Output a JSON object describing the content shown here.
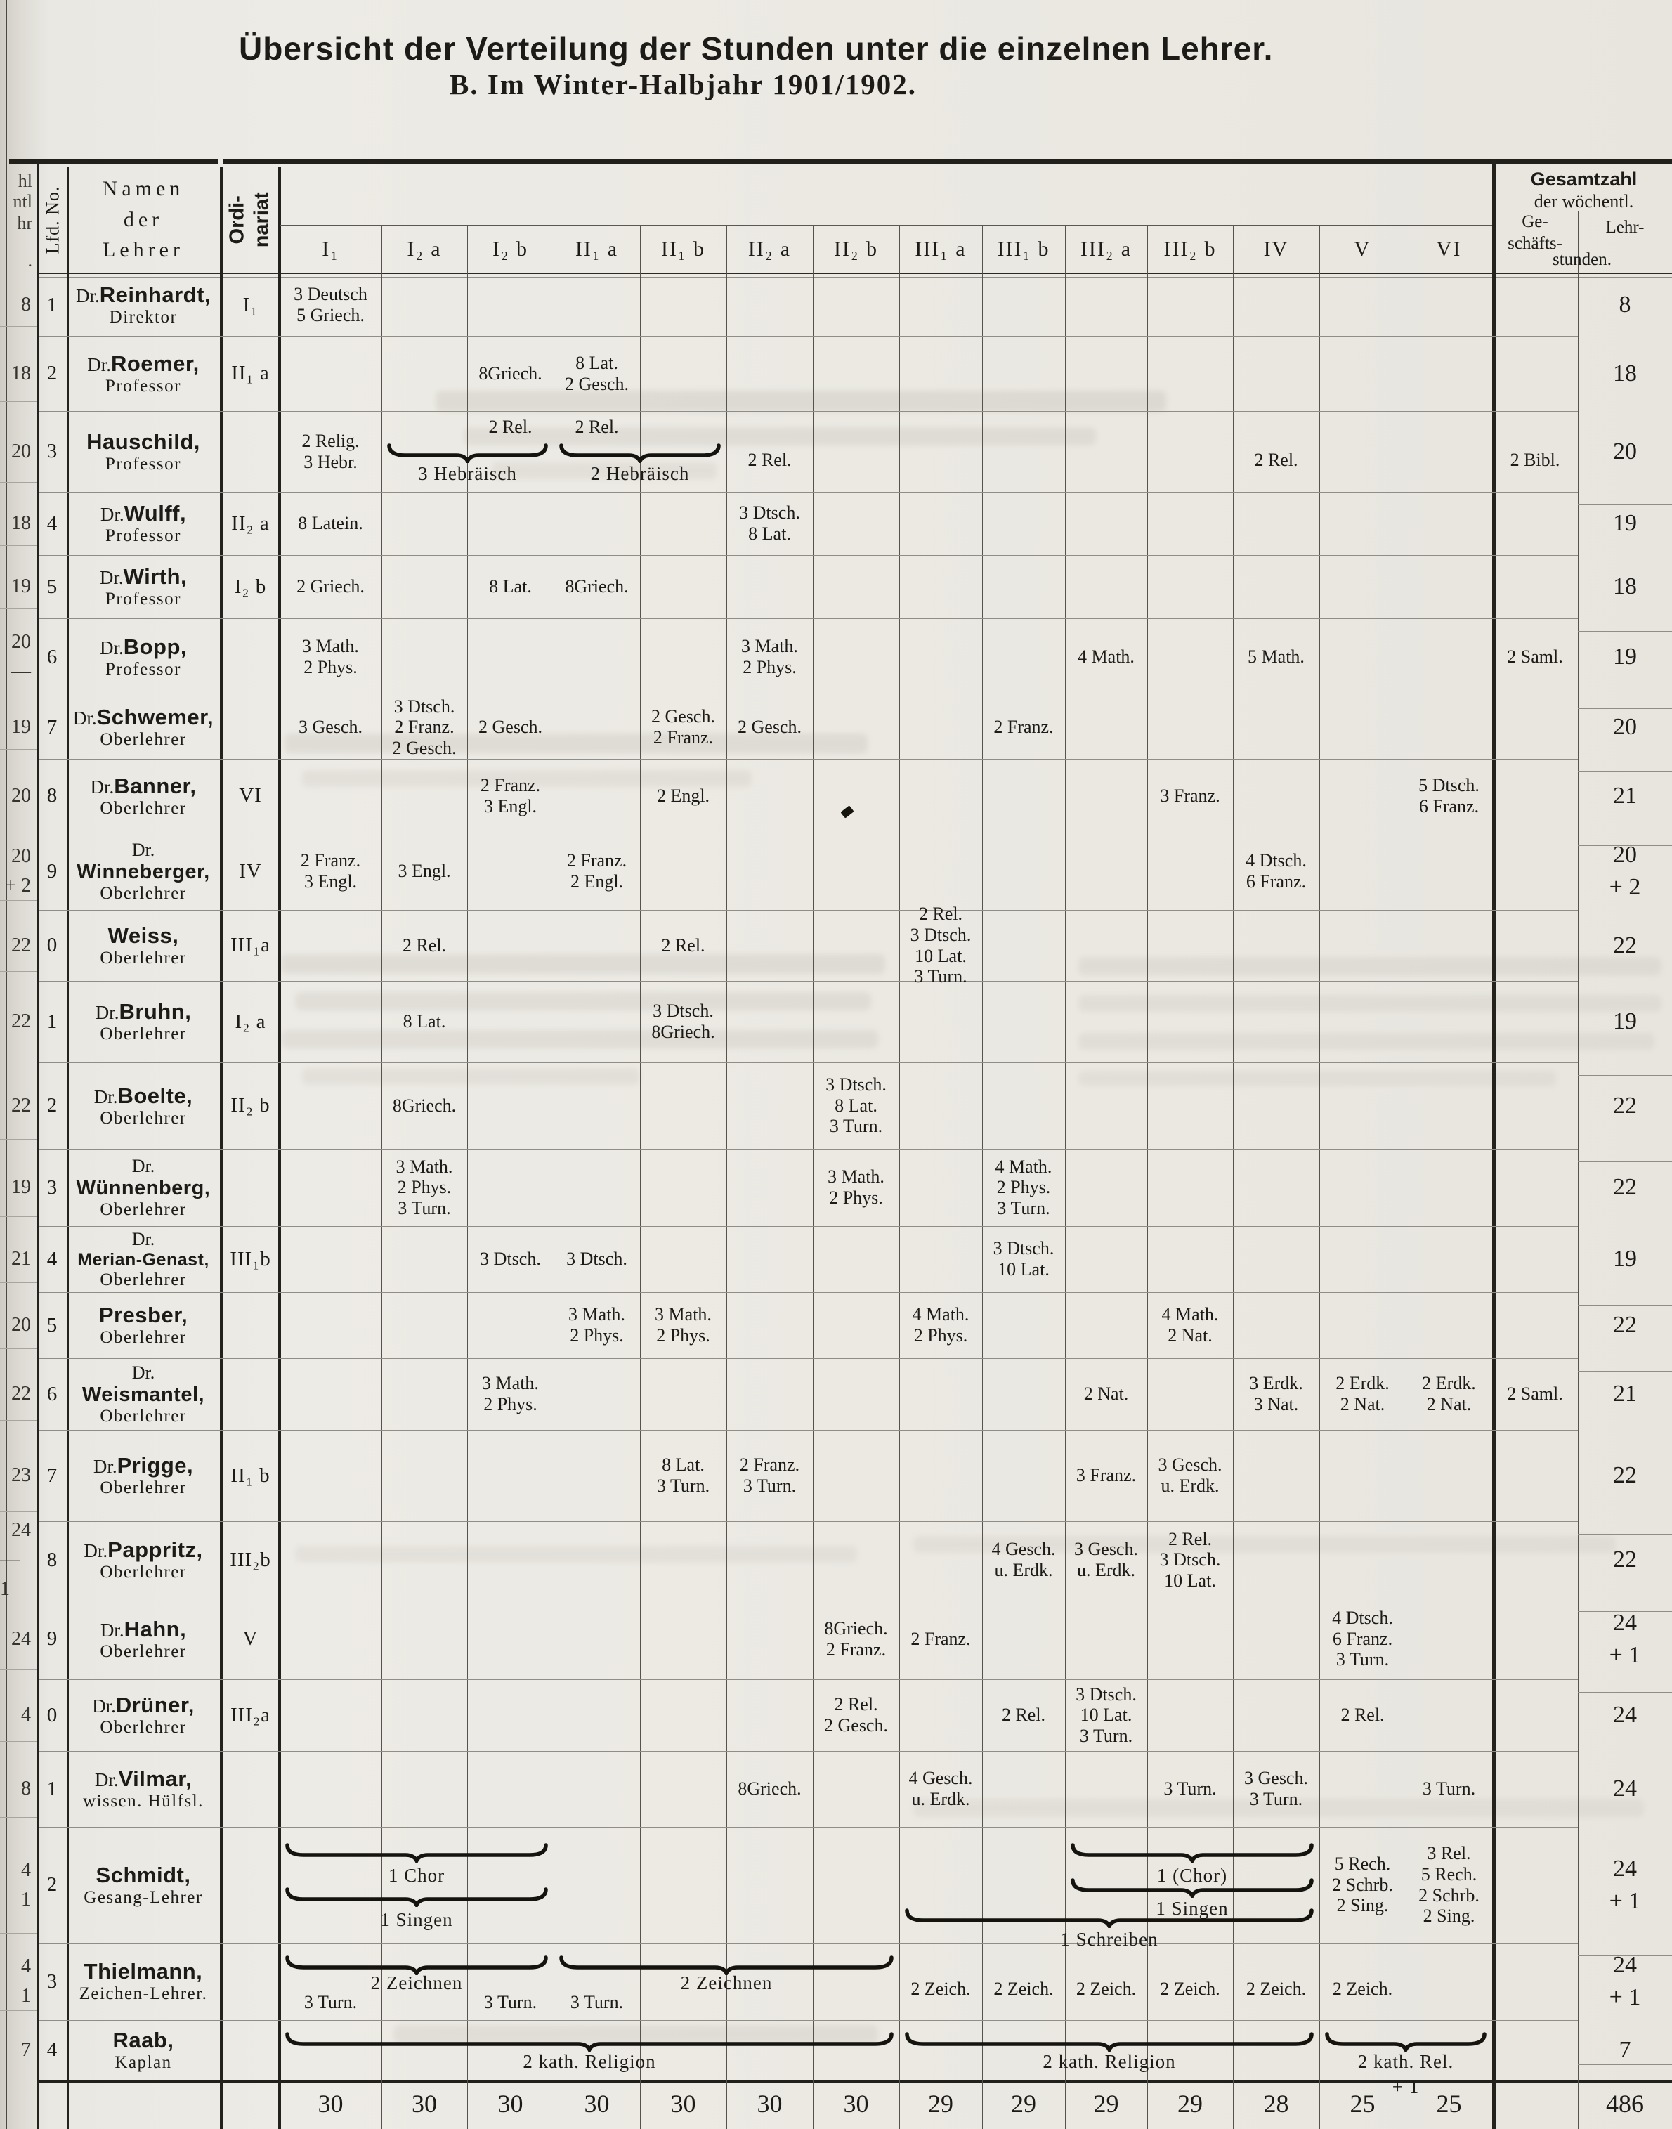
{
  "page": {
    "title": "Übersicht der Verteilung der Stunden unter die einzelnen Lehrer.",
    "subtitle": "B.   Im Winter-Halbjahr 1901/1902."
  },
  "strip": {
    "fragments": [
      "hl",
      "ntl",
      "hr",
      "."
    ]
  },
  "header": {
    "lfd": "Lfd. No.",
    "name": [
      "Namen",
      "der",
      "Lehrer"
    ],
    "ord": [
      "Ordi-",
      "nariat"
    ],
    "classes": [
      "I₁",
      "I₂ a",
      "I₂ b",
      "II₁ a",
      "II₁ b",
      "II₂ a",
      "II₂ b",
      "III₁ a",
      "III₁ b",
      "III₂ a",
      "III₂ b",
      "IV",
      "V",
      "VI"
    ],
    "total": {
      "line1": "Gesamtzahl",
      "line2": "der wöchentl.",
      "sub_left": [
        "Ge-",
        "schäfts-"
      ],
      "sub_right": "Lehr-",
      "sub_bottom": "stunden."
    }
  },
  "teachers": [
    {
      "no": "1",
      "strip": [
        "8"
      ],
      "name": {
        "dr": "Dr.",
        "sur": "Reinhardt,",
        "sub": "Direktor"
      },
      "ord": "I₁",
      "cells": [
        {
          "col": "I1",
          "lines": [
            "3 Deutsch",
            "5 Griech."
          ]
        }
      ],
      "braces": [],
      "lehr": [
        "8"
      ]
    },
    {
      "no": "2",
      "strip": [
        "18"
      ],
      "name": {
        "dr": "Dr.",
        "sur": "Roemer,",
        "sub": "Professor"
      },
      "ord": "II₁ a",
      "cells": [
        {
          "col": "I2b",
          "lines": [
            "8Griech."
          ]
        },
        {
          "col": "II1a",
          "lines": [
            "8 Lat.",
            "2 Gesch."
          ]
        }
      ],
      "braces": [],
      "lehr": [
        "18"
      ]
    },
    {
      "no": "3",
      "strip": [
        "20"
      ],
      "name": {
        "sur": "Hauschild,",
        "sub": "Professor"
      },
      "ord": "",
      "cells": [
        {
          "col": "I1",
          "lines": [
            "2 Relig.",
            "3 Hebr."
          ]
        },
        {
          "col": "I2b",
          "lines": [
            "2 Rel."
          ],
          "va": "top"
        },
        {
          "col": "II1a",
          "lines": [
            "2 Rel."
          ],
          "va": "top"
        },
        {
          "col": "II2a",
          "lines": [
            "2 Rel."
          ],
          "va": "low"
        },
        {
          "col": "IV",
          "lines": [
            "2 Rel."
          ],
          "va": "low"
        },
        {
          "col": "gesch",
          "lines": [
            "2 Bibl."
          ],
          "va": "low"
        }
      ],
      "braces": [
        {
          "from": "I2a",
          "to": "I2b",
          "label": "3 Hebräisch",
          "yb": 0.4,
          "yl": 0.64
        },
        {
          "from": "II1a",
          "to": "II1b",
          "label": "2 Hebräisch",
          "yb": 0.4,
          "yl": 0.64
        }
      ],
      "lehr": [
        "20"
      ]
    },
    {
      "no": "4",
      "strip": [
        "18"
      ],
      "name": {
        "dr": "Dr.",
        "sur": "Wulff,",
        "sub": "Professor"
      },
      "ord": "II₂ a",
      "cells": [
        {
          "col": "I1",
          "lines": [
            "8 Latein."
          ]
        },
        {
          "col": "II2a",
          "lines": [
            "3 Dtsch.",
            "8 Lat."
          ]
        }
      ],
      "braces": [],
      "lehr": [
        "19"
      ]
    },
    {
      "no": "5",
      "strip": [
        "19"
      ],
      "name": {
        "dr": "Dr.",
        "sur": "Wirth,",
        "sub": "Professor"
      },
      "ord": "I₂ b",
      "cells": [
        {
          "col": "I1",
          "lines": [
            "2 Griech."
          ]
        },
        {
          "col": "I2b",
          "lines": [
            "8 Lat."
          ]
        },
        {
          "col": "II1a",
          "lines": [
            "8Griech."
          ]
        }
      ],
      "braces": [],
      "lehr": [
        "18"
      ]
    },
    {
      "no": "6",
      "strip": [
        "20",
        "—"
      ],
      "name": {
        "dr": "Dr.",
        "sur": "Bopp,",
        "sub": "Professor"
      },
      "ord": "",
      "cells": [
        {
          "col": "I1",
          "lines": [
            "3 Math.",
            "2 Phys."
          ]
        },
        {
          "col": "II2a",
          "lines": [
            "3 Math.",
            "2 Phys."
          ]
        },
        {
          "col": "III2a",
          "lines": [
            "4 Math."
          ]
        },
        {
          "col": "IV",
          "lines": [
            "5 Math."
          ]
        },
        {
          "col": "gesch",
          "lines": [
            "2 Saml."
          ]
        }
      ],
      "braces": [],
      "lehr": [
        "19"
      ]
    },
    {
      "no": "7",
      "strip": [
        "19"
      ],
      "name": {
        "dr": "Dr.",
        "sur": "Schwemer,",
        "sub": "Oberlehrer"
      },
      "ord": "",
      "cells": [
        {
          "col": "I1",
          "lines": [
            "3 Gesch."
          ]
        },
        {
          "col": "I2a",
          "lines": [
            "3 Dtsch.",
            "2 Franz.",
            "2 Gesch."
          ]
        },
        {
          "col": "I2b",
          "lines": [
            "2 Gesch."
          ]
        },
        {
          "col": "II1b",
          "lines": [
            "2 Gesch.",
            "2 Franz."
          ]
        },
        {
          "col": "II2a",
          "lines": [
            "2 Gesch."
          ]
        },
        {
          "col": "III1b",
          "lines": [
            "2 Franz."
          ]
        }
      ],
      "braces": [],
      "lehr": [
        "20"
      ]
    },
    {
      "no": "8",
      "strip": [
        "20"
      ],
      "name": {
        "dr": "Dr.",
        "sur": "Banner,",
        "sub": "Oberlehrer"
      },
      "ord": "VI",
      "cells": [
        {
          "col": "I2b",
          "lines": [
            "2 Franz.",
            "3 Engl."
          ]
        },
        {
          "col": "II1b",
          "lines": [
            "2 Engl."
          ]
        },
        {
          "col": "III2b",
          "lines": [
            "3 Franz."
          ]
        },
        {
          "col": "VI",
          "lines": [
            "5 Dtsch.",
            "6 Franz."
          ]
        }
      ],
      "braces": [],
      "lehr": [
        "21"
      ]
    },
    {
      "no": "9",
      "strip": [
        "20",
        "+ 2"
      ],
      "name": {
        "dr": "Dr.",
        "drLine": true,
        "sur": "Winneberger,",
        "sub": "Oberlehrer"
      },
      "ord": "IV",
      "cells": [
        {
          "col": "I1",
          "lines": [
            "2 Franz.",
            "3 Engl."
          ]
        },
        {
          "col": "I2a",
          "lines": [
            "3 Engl."
          ]
        },
        {
          "col": "II1a",
          "lines": [
            "2 Franz.",
            "2 Engl."
          ]
        },
        {
          "col": "IV",
          "lines": [
            "4 Dtsch.",
            "6 Franz."
          ]
        }
      ],
      "braces": [],
      "lehr": [
        "20",
        "+ 2"
      ]
    },
    {
      "no": "0",
      "strip": [
        "22"
      ],
      "name": {
        "sur": "Weiss,",
        "sub": "Oberlehrer"
      },
      "ord": "III₁a",
      "cells": [
        {
          "col": "I2a",
          "lines": [
            "2 Rel."
          ]
        },
        {
          "col": "II1b",
          "lines": [
            "2 Rel."
          ]
        },
        {
          "col": "III1a",
          "lines": [
            "2 Rel.",
            "3 Dtsch.",
            "10 Lat.",
            "3 Turn."
          ]
        }
      ],
      "braces": [],
      "lehr": [
        "22"
      ]
    },
    {
      "no": "1",
      "strip": [
        "22"
      ],
      "name": {
        "dr": "Dr.",
        "sur": "Bruhn,",
        "sub": "Oberlehrer"
      },
      "ord": "I₂ a",
      "cells": [
        {
          "col": "I2a",
          "lines": [
            "8 Lat."
          ]
        },
        {
          "col": "II1b",
          "lines": [
            "3 Dtsch.",
            "8Griech."
          ]
        }
      ],
      "braces": [],
      "lehr": [
        "19"
      ]
    },
    {
      "no": "2",
      "strip": [
        "22"
      ],
      "name": {
        "dr": "Dr.",
        "sur": "Boelte,",
        "sub": "Oberlehrer"
      },
      "ord": "II₂ b",
      "cells": [
        {
          "col": "I2a",
          "lines": [
            "8Griech."
          ]
        },
        {
          "col": "II2b",
          "lines": [
            "3 Dtsch.",
            "8 Lat.",
            "3 Turn."
          ]
        }
      ],
      "braces": [],
      "lehr": [
        "22"
      ]
    },
    {
      "no": "3",
      "strip": [
        "19"
      ],
      "name": {
        "dr": "Dr.",
        "drLine": true,
        "sur": "Wünnenberg,",
        "sub": "Oberlehrer"
      },
      "ord": "",
      "cells": [
        {
          "col": "I2a",
          "lines": [
            "3 Math.",
            "2 Phys.",
            "3 Turn."
          ]
        },
        {
          "col": "II2b",
          "lines": [
            "3 Math.",
            "2 Phys."
          ]
        },
        {
          "col": "III1b",
          "lines": [
            "4 Math.",
            "2 Phys.",
            "3 Turn."
          ]
        }
      ],
      "braces": [],
      "lehr": [
        "22"
      ]
    },
    {
      "no": "4",
      "strip": [
        "21"
      ],
      "name": {
        "dr": "Dr.",
        "drLine": true,
        "sur": "Merian-Genast,",
        "sub": "Oberlehrer"
      },
      "ord": "III₁b",
      "cells": [
        {
          "col": "I2b",
          "lines": [
            "3 Dtsch."
          ]
        },
        {
          "col": "II1a",
          "lines": [
            "3 Dtsch."
          ]
        },
        {
          "col": "III1b",
          "lines": [
            "3 Dtsch.",
            "10 Lat."
          ]
        }
      ],
      "braces": [],
      "lehr": [
        "19"
      ]
    },
    {
      "no": "5",
      "strip": [
        "20"
      ],
      "name": {
        "sur": "Presber,",
        "sub": "Oberlehrer"
      },
      "ord": "",
      "cells": [
        {
          "col": "II1a",
          "lines": [
            "3 Math.",
            "2 Phys."
          ]
        },
        {
          "col": "II1b",
          "lines": [
            "3 Math.",
            "2 Phys."
          ]
        },
        {
          "col": "III1a",
          "lines": [
            "4 Math.",
            "2 Phys."
          ]
        },
        {
          "col": "III2b",
          "lines": [
            "4 Math.",
            "2 Nat."
          ]
        }
      ],
      "braces": [],
      "lehr": [
        "22"
      ]
    },
    {
      "no": "6",
      "strip": [
        "22"
      ],
      "name": {
        "dr": "Dr.",
        "drLine": true,
        "sur": "Weismantel,",
        "sub": "Oberlehrer"
      },
      "ord": "",
      "cells": [
        {
          "col": "I2b",
          "lines": [
            "3 Math.",
            "2 Phys."
          ]
        },
        {
          "col": "III2a",
          "lines": [
            "2 Nat."
          ]
        },
        {
          "col": "IV",
          "lines": [
            "3 Erdk.",
            "3 Nat."
          ]
        },
        {
          "col": "V",
          "lines": [
            "2 Erdk.",
            "2 Nat."
          ]
        },
        {
          "col": "VI",
          "lines": [
            "2 Erdk.",
            "2 Nat."
          ]
        },
        {
          "col": "gesch",
          "lines": [
            "2 Saml."
          ]
        }
      ],
      "braces": [],
      "lehr": [
        "21"
      ]
    },
    {
      "no": "7",
      "strip": [
        "23"
      ],
      "name": {
        "dr": "Dr.",
        "sur": "Prigge,",
        "sub": "Oberlehrer"
      },
      "ord": "II₁ b",
      "cells": [
        {
          "col": "II1b",
          "lines": [
            "8 Lat.",
            "3 Turn."
          ]
        },
        {
          "col": "II2a",
          "lines": [
            "2 Franz.",
            "3 Turn."
          ]
        },
        {
          "col": "III2a",
          "lines": [
            "3 Franz."
          ]
        },
        {
          "col": "III2b",
          "lines": [
            "3 Gesch.",
            "u. Erdk."
          ]
        }
      ],
      "braces": [],
      "lehr": [
        "22"
      ]
    },
    {
      "no": "8",
      "strip": [
        "24",
        "— 1"
      ],
      "name": {
        "dr": "Dr.",
        "sur": "Pappritz,",
        "sub": "Oberlehrer"
      },
      "ord": "III₂b",
      "cells": [
        {
          "col": "III1b",
          "lines": [
            "4 Gesch.",
            "u. Erdk."
          ]
        },
        {
          "col": "III2a",
          "lines": [
            "3 Gesch.",
            "u. Erdk."
          ]
        },
        {
          "col": "III2b",
          "lines": [
            "2 Rel.",
            "3 Dtsch.",
            "10 Lat."
          ]
        }
      ],
      "braces": [],
      "lehr": [
        "22"
      ]
    },
    {
      "no": "9",
      "strip": [
        "24"
      ],
      "name": {
        "dr": "Dr.",
        "sur": "Hahn,",
        "sub": "Oberlehrer"
      },
      "ord": "V",
      "cells": [
        {
          "col": "II2b",
          "lines": [
            "8Griech.",
            "2 Franz."
          ]
        },
        {
          "col": "III1a",
          "lines": [
            "2 Franz."
          ]
        },
        {
          "col": "V",
          "lines": [
            "4 Dtsch.",
            "6 Franz.",
            "3 Turn."
          ]
        }
      ],
      "braces": [],
      "lehr": [
        "24",
        "+ 1"
      ]
    },
    {
      "no": "0",
      "strip": [
        "4"
      ],
      "name": {
        "dr": "Dr.",
        "sur": "Drüner,",
        "sub": "Oberlehrer"
      },
      "ord": "III₂a",
      "cells": [
        {
          "col": "II2b",
          "lines": [
            "2 Rel.",
            "2 Gesch."
          ]
        },
        {
          "col": "III1b",
          "lines": [
            "2 Rel."
          ]
        },
        {
          "col": "III2a",
          "lines": [
            "3 Dtsch.",
            "10 Lat.",
            "3 Turn."
          ]
        },
        {
          "col": "V",
          "lines": [
            "2 Rel."
          ]
        }
      ],
      "braces": [],
      "lehr": [
        "24"
      ]
    },
    {
      "no": "1",
      "strip": [
        "8"
      ],
      "name": {
        "dr": "Dr.",
        "sur": "Vilmar,",
        "sub": "wissen. Hülfsl."
      },
      "ord": "",
      "cells": [
        {
          "col": "II2a",
          "lines": [
            "8Griech."
          ]
        },
        {
          "col": "III1a",
          "lines": [
            "4 Gesch.",
            "u. Erdk."
          ]
        },
        {
          "col": "III2b",
          "lines": [
            "3 Turn."
          ]
        },
        {
          "col": "IV",
          "lines": [
            "3 Gesch.",
            "3 Turn."
          ]
        },
        {
          "col": "VI",
          "lines": [
            "3 Turn."
          ]
        }
      ],
      "braces": [],
      "lehr": [
        "24"
      ]
    },
    {
      "no": "2",
      "strip": [
        "4",
        "1"
      ],
      "name": {
        "sur": "Schmidt,",
        "sub": "Gesang-Lehrer"
      },
      "ord": "",
      "cells": [
        {
          "col": "V",
          "lines": [
            "5 Rech.",
            "2 Schrb.",
            "2 Sing."
          ]
        },
        {
          "col": "VI",
          "lines": [
            "3 Rel.",
            "5 Rech.",
            "2 Schrb.",
            "2 Sing."
          ]
        }
      ],
      "braces": [
        {
          "from": "I1",
          "to": "I2b",
          "label": "1 Chor",
          "yb": 0.14,
          "yl": 0.33
        },
        {
          "from": "I1",
          "to": "I2b",
          "label": "1 Singen",
          "yb": 0.52,
          "yl": 0.71
        },
        {
          "from": "III2a",
          "to": "IV",
          "label": "1 (Chor)",
          "yb": 0.14,
          "yl": 0.33
        },
        {
          "from": "III2a",
          "to": "IV",
          "label": "1 Singen",
          "yb": 0.44,
          "yl": 0.61
        },
        {
          "from": "III1a",
          "to": "IV",
          "label": "1 Schreiben",
          "yb": 0.7,
          "yl": 0.88
        }
      ],
      "lehr": [
        "24",
        "+ 1"
      ]
    },
    {
      "no": "3",
      "strip": [
        "4",
        "1"
      ],
      "name": {
        "sur": "Thielmann,",
        "sub": "Zeichen-Lehrer."
      },
      "ord": "",
      "cells": [
        {
          "col": "I1",
          "lines": [
            "3 Turn."
          ],
          "va": "bottom"
        },
        {
          "col": "I2b",
          "lines": [
            "3 Turn."
          ],
          "va": "bottom"
        },
        {
          "col": "II1a",
          "lines": [
            "3 Turn."
          ],
          "va": "bottom"
        },
        {
          "col": "III1a",
          "lines": [
            "2 Zeich."
          ],
          "va": "low"
        },
        {
          "col": "III1b",
          "lines": [
            "2 Zeich."
          ],
          "va": "low"
        },
        {
          "col": "III2a",
          "lines": [
            "2 Zeich."
          ],
          "va": "low"
        },
        {
          "col": "III2b",
          "lines": [
            "2 Zeich."
          ],
          "va": "low"
        },
        {
          "col": "IV",
          "lines": [
            "2 Zeich."
          ],
          "va": "low"
        },
        {
          "col": "V",
          "lines": [
            "2 Zeich."
          ],
          "va": "low"
        }
      ],
      "braces": [
        {
          "from": "I1",
          "to": "I2b",
          "label": "2 Zeichnen",
          "yb": 0.16,
          "yl": 0.38
        },
        {
          "from": "II1a",
          "to": "II2b",
          "label": "2 Zeichnen",
          "yb": 0.16,
          "yl": 0.38
        }
      ],
      "lehr": [
        "24",
        "+ 1"
      ]
    },
    {
      "no": "4",
      "strip": [
        "7"
      ],
      "name": {
        "sur": "Raab,",
        "sub": "Kaplan"
      },
      "ord": "",
      "cells": [],
      "braces": [
        {
          "from": "I1",
          "to": "II2b",
          "label": "2 kath. Religion",
          "yb": 0.2,
          "yl": 0.52
        },
        {
          "from": "III1a",
          "to": "IV",
          "label": "2 kath. Religion",
          "yb": 0.2,
          "yl": 0.52
        },
        {
          "from": "V",
          "to": "VI",
          "label": "2 kath. Rel.",
          "label2": "+ 1",
          "yb": 0.2,
          "yl": 0.52
        }
      ],
      "lehr": [
        "7"
      ]
    }
  ],
  "totals": {
    "I1": "30",
    "I2a": "30",
    "I2b": "30",
    "II1a": "30",
    "II1b": "30",
    "II2a": "30",
    "II2b": "30",
    "III1a": "29",
    "III1b": "29",
    "III2a": "29",
    "III2b": "29",
    "IV": "28",
    "V": "25",
    "VI": "25",
    "lehr": "486"
  }
}
